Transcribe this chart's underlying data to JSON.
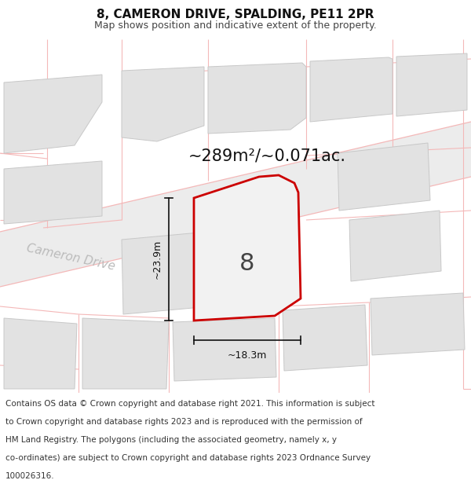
{
  "title": "8, CAMERON DRIVE, SPALDING, PE11 2PR",
  "subtitle": "Map shows position and indicative extent of the property.",
  "area_text": "~289m²/~0.071ac.",
  "dim_width": "~18.3m",
  "dim_height": "~23.9m",
  "number_label": "8",
  "street_label": "Cameron Drive",
  "footer_lines": [
    "Contains OS data © Crown copyright and database right 2021. This information is subject",
    "to Crown copyright and database rights 2023 and is reproduced with the permission of",
    "HM Land Registry. The polygons (including the associated geometry, namely x, y",
    "co-ordinates) are subject to Crown copyright and database rights 2023 Ordnance Survey",
    "100026316."
  ],
  "bg_color": "#ffffff",
  "map_bg": "#ffffff",
  "building_fill": "#e2e2e2",
  "building_edge": "#c8c8c8",
  "highlight_fill": "#f2f2f2",
  "highlight_edge": "#cc0000",
  "dim_color": "#111111",
  "street_color": "#bbbbbb",
  "area_color": "#111111",
  "pink_line": "#f4b8b8",
  "title_color": "#111111",
  "subtitle_color": "#444444",
  "footer_color": "#333333"
}
